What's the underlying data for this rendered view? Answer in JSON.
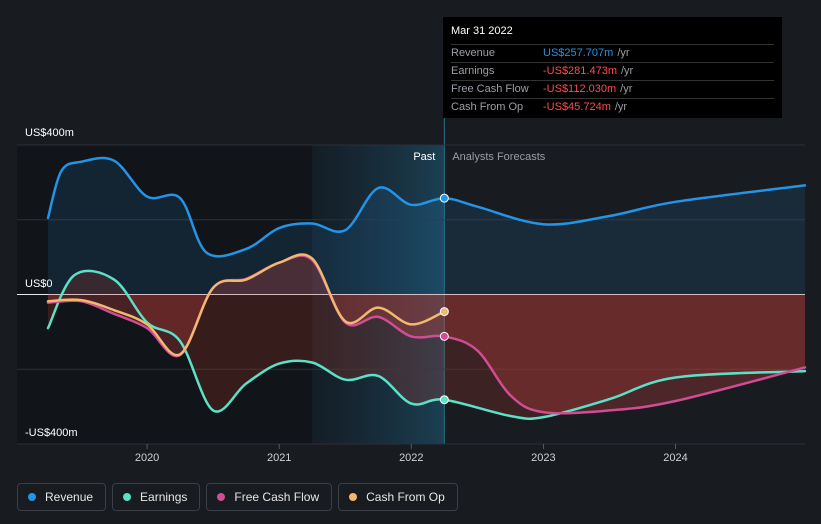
{
  "chart_data": {
    "type": "line",
    "title": "",
    "y_labels": {
      "top": "US$400m",
      "zero": "US$0",
      "bottom": "-US$400m"
    },
    "ylim": [
      -400,
      400
    ],
    "xlim": [
      2019.25,
      2024.98
    ],
    "x_ticks": [
      2020,
      2021,
      2022,
      2023,
      2024
    ],
    "x_tick_labels": [
      "2020",
      "2021",
      "2022",
      "2023",
      "2024"
    ],
    "past_label": "Past",
    "forecast_label": "Analysts Forecasts",
    "past_highlight_start": 2021.25,
    "divider_x": 2022.25,
    "series": [
      {
        "name": "Revenue",
        "color": "#2394e6",
        "points": [
          [
            2019.25,
            205
          ],
          [
            2019.35,
            330
          ],
          [
            2019.5,
            355
          ],
          [
            2019.75,
            358
          ],
          [
            2020.0,
            262
          ],
          [
            2020.25,
            258
          ],
          [
            2020.45,
            112
          ],
          [
            2020.75,
            122
          ],
          [
            2021.0,
            178
          ],
          [
            2021.25,
            190
          ],
          [
            2021.5,
            172
          ],
          [
            2021.75,
            285
          ],
          [
            2022.0,
            240
          ],
          [
            2022.25,
            257.7
          ],
          [
            2022.5,
            235
          ],
          [
            2023.0,
            188
          ],
          [
            2023.5,
            210
          ],
          [
            2024.0,
            248
          ],
          [
            2024.98,
            292
          ]
        ]
      },
      {
        "name": "Earnings",
        "color": "#5ce0c6",
        "points": [
          [
            2019.25,
            -90
          ],
          [
            2019.45,
            52
          ],
          [
            2019.75,
            40
          ],
          [
            2020.0,
            -75
          ],
          [
            2020.25,
            -125
          ],
          [
            2020.5,
            -310
          ],
          [
            2020.75,
            -238
          ],
          [
            2021.0,
            -185
          ],
          [
            2021.25,
            -182
          ],
          [
            2021.5,
            -228
          ],
          [
            2021.75,
            -218
          ],
          [
            2022.0,
            -292
          ],
          [
            2022.25,
            -281.5
          ],
          [
            2022.75,
            -325
          ],
          [
            2023.0,
            -328
          ],
          [
            2023.5,
            -280
          ],
          [
            2024.0,
            -222
          ],
          [
            2024.98,
            -205
          ]
        ]
      },
      {
        "name": "Free Cash Flow",
        "color": "#cf4d93",
        "points": [
          [
            2019.25,
            -22
          ],
          [
            2019.5,
            -18
          ],
          [
            2019.75,
            -52
          ],
          [
            2020.0,
            -90
          ],
          [
            2020.25,
            -162
          ],
          [
            2020.5,
            18
          ],
          [
            2020.75,
            42
          ],
          [
            2021.0,
            85
          ],
          [
            2021.25,
            92
          ],
          [
            2021.5,
            -75
          ],
          [
            2021.75,
            -60
          ],
          [
            2022.0,
            -112
          ],
          [
            2022.25,
            -112.0
          ],
          [
            2022.5,
            -150
          ],
          [
            2022.75,
            -270
          ],
          [
            2023.0,
            -315
          ],
          [
            2023.5,
            -310
          ],
          [
            2024.0,
            -285
          ],
          [
            2024.98,
            -195
          ]
        ]
      },
      {
        "name": "Cash From Op",
        "color": "#f0b870",
        "points": [
          [
            2019.25,
            -18
          ],
          [
            2019.5,
            -15
          ],
          [
            2019.75,
            -42
          ],
          [
            2020.0,
            -80
          ],
          [
            2020.25,
            -160
          ],
          [
            2020.5,
            18
          ],
          [
            2020.75,
            40
          ],
          [
            2021.0,
            85
          ],
          [
            2021.25,
            96
          ],
          [
            2021.5,
            -72
          ],
          [
            2021.75,
            -35
          ],
          [
            2022.0,
            -80
          ],
          [
            2022.25,
            -45.7
          ]
        ]
      }
    ]
  },
  "tooltip": {
    "date": "Mar 31 2022",
    "rows": [
      {
        "name": "Revenue",
        "value": "US$257.707m",
        "unit": "/yr",
        "color": "#2394e6"
      },
      {
        "name": "Earnings",
        "value": "-US$281.473m",
        "unit": "/yr",
        "color": "#ff4b4b"
      },
      {
        "name": "Free Cash Flow",
        "value": "-US$112.030m",
        "unit": "/yr",
        "color": "#ff4b4b"
      },
      {
        "name": "Cash From Op",
        "value": "-US$45.724m",
        "unit": "/yr",
        "color": "#ff4b4b"
      }
    ]
  },
  "legend": [
    {
      "label": "Revenue",
      "color": "#2394e6"
    },
    {
      "label": "Earnings",
      "color": "#5ce0c6"
    },
    {
      "label": "Free Cash Flow",
      "color": "#cf4d93"
    },
    {
      "label": "Cash From Op",
      "color": "#f0b870"
    }
  ]
}
